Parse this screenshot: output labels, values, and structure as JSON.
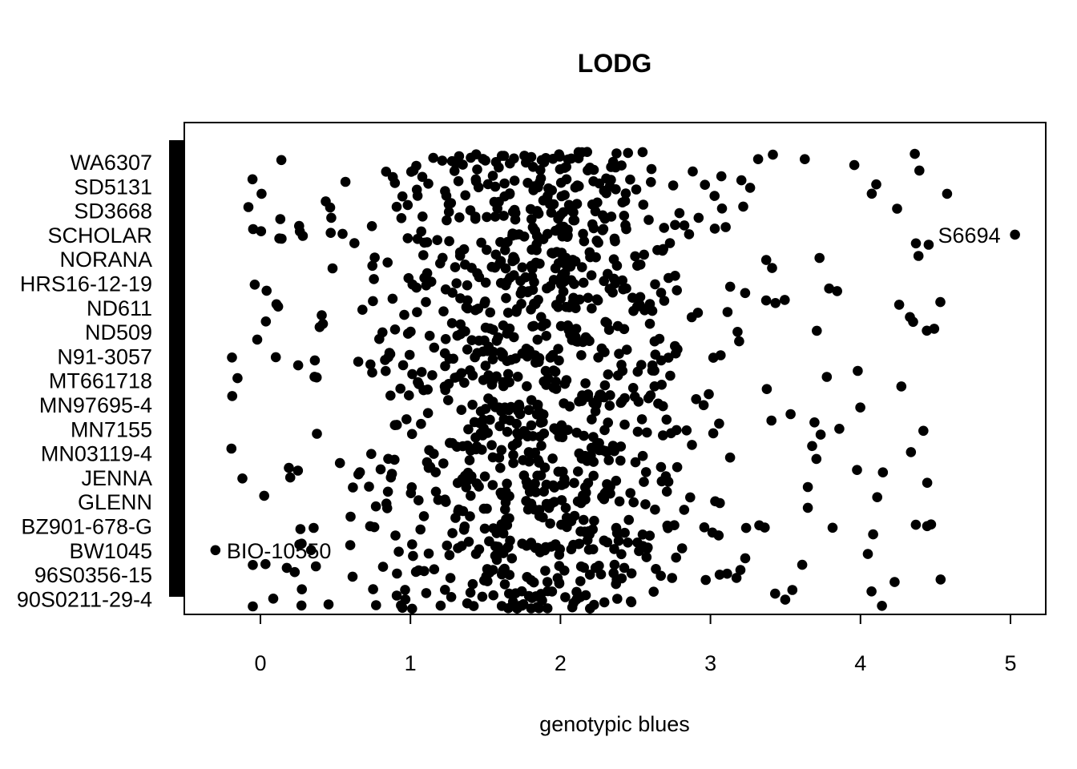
{
  "chart_data": {
    "type": "scatter",
    "title": "LODG",
    "xlabel": "genotypic blues",
    "ylabel": "",
    "xlim": [
      -0.5,
      5.25
    ],
    "xticks": [
      0,
      1,
      2,
      3,
      4,
      5
    ],
    "xtick_labels": [
      "0",
      "1",
      "2",
      "3",
      "4",
      "5"
    ],
    "grid": false,
    "legend": "none",
    "marker_color": "#000000",
    "categories": [
      "WA6307",
      "SD5131",
      "SD3668",
      "SCHOLAR",
      "NORANA",
      "HRS16-12-19",
      "ND611",
      "ND509",
      "N91-3057",
      "MT661718",
      "MN97695-4",
      "MN7155",
      "MN03119-4",
      "JENNA",
      "GLENN",
      "BZ901-678-G",
      "BW1045",
      "96S0356-15",
      "90S0211-29-4"
    ],
    "annotations": [
      {
        "text": "S6694",
        "x": 5.03,
        "category": "SCHOLAR"
      },
      {
        "text": "BIO-10550",
        "x": -0.3,
        "category": "BW1045"
      }
    ]
  }
}
